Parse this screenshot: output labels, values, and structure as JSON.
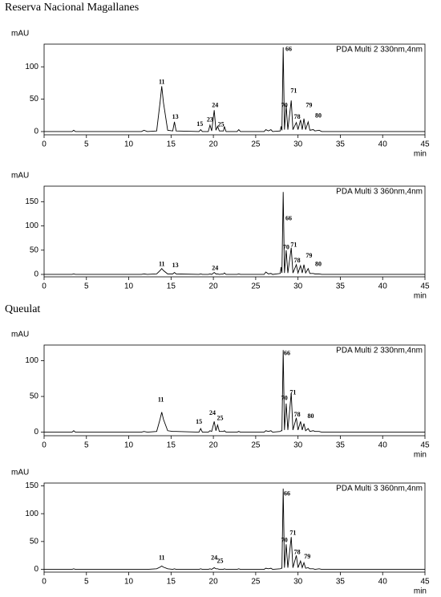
{
  "headings": [
    "Reserva Nacional Magallanes",
    "Queulat"
  ],
  "chart_data": [
    {
      "type": "line",
      "y_label": "mAU",
      "x_label": "min",
      "legend": "PDA Multi 2 330nm,4nm",
      "color": "#000000",
      "x": [
        0,
        3.3,
        3.5,
        3.7,
        11.5,
        11.8,
        12.2,
        13.3,
        13.7,
        13.9,
        14.1,
        14.6,
        15.2,
        15.4,
        15.6,
        18.3,
        18.5,
        18.7,
        19.4,
        19.6,
        19.8,
        20.1,
        20.3,
        20.5,
        20.7,
        21.2,
        21.3,
        21.5,
        22.8,
        23,
        23.2,
        26,
        26.2,
        26.5,
        26.8,
        27,
        27.9,
        28,
        28.1,
        28.25,
        28.4,
        28.6,
        28.8,
        29.2,
        29.4,
        29.8,
        30,
        30.3,
        30.5,
        30.7,
        30.9,
        31.2,
        31.4,
        31.8,
        32,
        32.5,
        32.8,
        45
      ],
      "values": [
        0,
        0,
        2,
        0,
        0,
        2,
        0,
        1,
        45,
        70,
        45,
        2,
        1,
        15,
        1,
        0,
        3,
        0,
        0,
        10,
        1,
        33,
        2,
        8,
        1,
        1,
        8,
        0,
        0,
        3,
        0,
        0,
        3,
        1,
        3,
        0,
        1,
        8,
        2,
        130,
        3,
        40,
        3,
        48,
        3,
        14,
        3,
        18,
        3,
        20,
        3,
        15,
        2,
        3,
        1,
        2,
        0,
        0
      ],
      "xlim": [
        0,
        45
      ],
      "xticks": [
        0,
        5,
        10,
        15,
        20,
        25,
        30,
        35,
        40,
        45
      ],
      "ylim": [
        -5,
        135
      ],
      "yticks": [
        0,
        50,
        100
      ],
      "annotations": [
        {
          "label": "11",
          "x": 13.9,
          "y": 76
        },
        {
          "label": "13",
          "x": 15.5,
          "y": 22
        },
        {
          "label": "15",
          "x": 18.4,
          "y": 11
        },
        {
          "label": "23",
          "x": 19.6,
          "y": 18
        },
        {
          "label": "24",
          "x": 20.2,
          "y": 40
        },
        {
          "label": "25",
          "x": 20.9,
          "y": 10
        },
        {
          "label": "66",
          "x": 28.9,
          "y": 127
        },
        {
          "label": "70",
          "x": 28.4,
          "y": 40
        },
        {
          "label": "71",
          "x": 29.5,
          "y": 62
        },
        {
          "label": "78",
          "x": 29.9,
          "y": 22
        },
        {
          "label": "79",
          "x": 31.3,
          "y": 40
        },
        {
          "label": "80",
          "x": 32.4,
          "y": 24
        }
      ]
    },
    {
      "type": "line",
      "y_label": "mAU",
      "x_label": "min",
      "legend": "PDA Multi 3 360nm,4nm",
      "color": "#000000",
      "x": [
        0,
        3.3,
        3.5,
        3.7,
        11.5,
        11.8,
        12.2,
        13.3,
        13.7,
        13.9,
        14.1,
        14.6,
        15.2,
        15.4,
        15.6,
        18.3,
        18.5,
        18.7,
        19.4,
        19.6,
        19.8,
        20.1,
        20.3,
        20.5,
        20.7,
        21.2,
        21.3,
        21.5,
        22.8,
        23,
        23.2,
        26,
        26.2,
        26.5,
        26.8,
        27,
        27.9,
        28,
        28.1,
        28.25,
        28.4,
        28.6,
        28.8,
        29.2,
        29.4,
        29.8,
        30,
        30.3,
        30.5,
        30.7,
        30.9,
        31.2,
        31.4,
        31.8,
        32,
        32.5,
        32.8,
        45
      ],
      "values": [
        0,
        0,
        1,
        0,
        0,
        1,
        0,
        1,
        8,
        12,
        8,
        1,
        1,
        4,
        1,
        0,
        1,
        0,
        0,
        1,
        0,
        4,
        1,
        1,
        0,
        1,
        3,
        0,
        0,
        1,
        0,
        0,
        5,
        1,
        2,
        0,
        2,
        15,
        3,
        170,
        3,
        50,
        3,
        55,
        3,
        20,
        3,
        18,
        3,
        20,
        3,
        12,
        2,
        2,
        1,
        1,
        0,
        0
      ],
      "xlim": [
        0,
        45
      ],
      "xticks": [
        0,
        5,
        10,
        15,
        20,
        25,
        30,
        35,
        40,
        45
      ],
      "ylim": [
        -5,
        182
      ],
      "yticks": [
        0,
        50,
        100,
        150
      ],
      "annotations": [
        {
          "label": "11",
          "x": 13.9,
          "y": 20
        },
        {
          "label": "13",
          "x": 15.5,
          "y": 18
        },
        {
          "label": "24",
          "x": 20.2,
          "y": 12
        },
        {
          "label": "66",
          "x": 28.9,
          "y": 115
        },
        {
          "label": "70",
          "x": 28.6,
          "y": 55
        },
        {
          "label": "71",
          "x": 29.5,
          "y": 60
        },
        {
          "label": "78",
          "x": 29.9,
          "y": 28
        },
        {
          "label": "79",
          "x": 31.3,
          "y": 38
        },
        {
          "label": "80",
          "x": 32.4,
          "y": 20
        }
      ]
    },
    {
      "type": "line",
      "y_label": "mAU",
      "x_label": "min",
      "legend": "PDA Multi 2 330nm,4nm",
      "color": "#000000",
      "x": [
        0,
        3.3,
        3.5,
        3.7,
        11.5,
        11.8,
        12.2,
        13.3,
        13.7,
        13.9,
        14.1,
        14.6,
        15.2,
        15.4,
        15.6,
        18.3,
        18.5,
        18.7,
        19.4,
        19.6,
        19.8,
        20.1,
        20.3,
        20.5,
        20.7,
        21.2,
        21.3,
        21.5,
        22.8,
        23,
        23.2,
        26,
        26.2,
        26.5,
        26.8,
        27,
        27.9,
        28,
        28.1,
        28.25,
        28.4,
        28.6,
        28.8,
        29.2,
        29.4,
        29.8,
        30,
        30.3,
        30.5,
        30.7,
        30.9,
        31.2,
        31.4,
        31.8,
        32,
        32.5,
        32.8,
        45
      ],
      "values": [
        0,
        0,
        2,
        0,
        0,
        1,
        0,
        1,
        18,
        28,
        18,
        2,
        1,
        1,
        1,
        0,
        5,
        0,
        0,
        2,
        1,
        15,
        2,
        10,
        1,
        1,
        2,
        0,
        0,
        1,
        0,
        0,
        2,
        1,
        2,
        0,
        1,
        2,
        2,
        115,
        3,
        40,
        3,
        55,
        3,
        20,
        3,
        15,
        3,
        12,
        2,
        5,
        1,
        2,
        1,
        1,
        0,
        0
      ],
      "xlim": [
        0,
        45
      ],
      "xticks": [
        0,
        5,
        10,
        15,
        20,
        25,
        30,
        35,
        40,
        45
      ],
      "ylim": [
        -5,
        122
      ],
      "yticks": [
        0,
        50,
        100
      ],
      "annotations": [
        {
          "label": "11",
          "x": 13.8,
          "y": 45
        },
        {
          "label": "15",
          "x": 18.3,
          "y": 14
        },
        {
          "label": "24",
          "x": 19.9,
          "y": 26
        },
        {
          "label": "25",
          "x": 20.8,
          "y": 19
        },
        {
          "label": "66",
          "x": 28.7,
          "y": 110
        },
        {
          "label": "70",
          "x": 28.4,
          "y": 47
        },
        {
          "label": "71",
          "x": 29.4,
          "y": 55
        },
        {
          "label": "78",
          "x": 29.9,
          "y": 24
        },
        {
          "label": "80",
          "x": 31.5,
          "y": 22
        }
      ]
    },
    {
      "type": "line",
      "y_label": "mAU",
      "x_label": "min",
      "legend": "PDA Multi 3 360nm,4nm",
      "color": "#000000",
      "x": [
        0,
        3.3,
        3.5,
        3.7,
        11.5,
        11.8,
        12.2,
        13.3,
        13.7,
        13.9,
        14.1,
        14.6,
        15.2,
        15.4,
        15.6,
        18.3,
        18.5,
        18.7,
        19.4,
        19.6,
        19.8,
        20.1,
        20.3,
        20.5,
        20.7,
        21.2,
        21.3,
        21.5,
        22.8,
        23,
        23.2,
        26,
        26.2,
        26.5,
        26.8,
        27,
        27.9,
        28,
        28.1,
        28.25,
        28.4,
        28.6,
        28.8,
        29.2,
        29.4,
        29.8,
        30,
        30.3,
        30.5,
        30.7,
        30.9,
        31.2,
        31.4,
        31.8,
        32,
        32.5,
        32.8,
        45
      ],
      "values": [
        0,
        0,
        1,
        0,
        0,
        0,
        0,
        1,
        4,
        6,
        4,
        1,
        0,
        1,
        0,
        0,
        1,
        0,
        0,
        1,
        0,
        3,
        1,
        1,
        0,
        0,
        1,
        0,
        0,
        1,
        0,
        0,
        2,
        1,
        2,
        0,
        1,
        2,
        2,
        145,
        3,
        45,
        3,
        58,
        3,
        25,
        3,
        15,
        3,
        12,
        2,
        3,
        1,
        1,
        0,
        1,
        0,
        0
      ],
      "xlim": [
        0,
        45
      ],
      "xticks": [
        0,
        5,
        10,
        15,
        20,
        25,
        30,
        35,
        40,
        45
      ],
      "ylim": [
        -5,
        155
      ],
      "yticks": [
        0,
        50,
        100,
        150
      ],
      "annotations": [
        {
          "label": "11",
          "x": 13.9,
          "y": 20
        },
        {
          "label": "24",
          "x": 20.1,
          "y": 20
        },
        {
          "label": "25",
          "x": 20.8,
          "y": 14
        },
        {
          "label": "66",
          "x": 28.7,
          "y": 135
        },
        {
          "label": "70",
          "x": 28.4,
          "y": 52
        },
        {
          "label": "71",
          "x": 29.4,
          "y": 65
        },
        {
          "label": "78",
          "x": 29.9,
          "y": 30
        },
        {
          "label": "79",
          "x": 31.1,
          "y": 22
        }
      ]
    }
  ]
}
